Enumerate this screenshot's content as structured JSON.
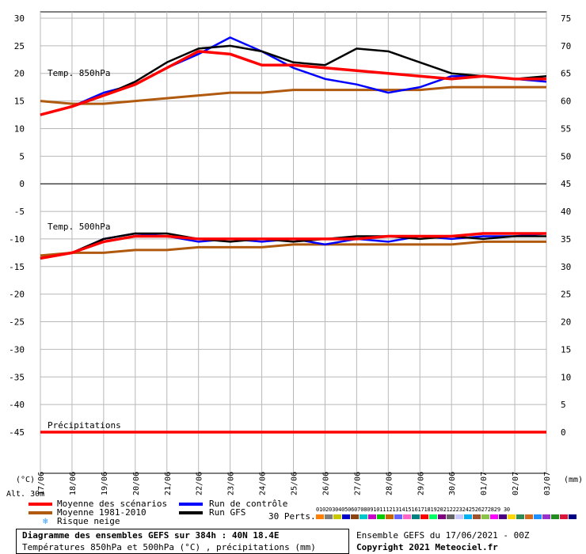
{
  "chart_data": {
    "type": "line",
    "title": "Diagramme des ensembles GEFS sur 384h : 40N 18.4E",
    "subtitle": "Températures 850hPa et 500hPa (°C) , précipitations (mm)",
    "left_axis_unit": "(°C)",
    "right_axis_unit": "(mm)",
    "altitude_label": "Alt. 30m",
    "left_ticks": [
      30,
      25,
      20,
      15,
      10,
      5,
      0,
      -5,
      -10,
      -15,
      -20,
      -25,
      -30,
      -35,
      -40,
      -45
    ],
    "right_ticks": [
      75,
      70,
      65,
      60,
      55,
      50,
      45,
      40,
      35,
      30,
      25,
      20,
      15,
      10,
      5,
      0
    ],
    "ylim": [
      -50,
      30
    ],
    "x_labels": [
      "17/06",
      "18/06",
      "19/06",
      "20/06",
      "21/06",
      "22/06",
      "23/06",
      "24/06",
      "25/06",
      "26/06",
      "27/06",
      "28/06",
      "29/06",
      "30/06",
      "01/07",
      "02/07",
      "03/07"
    ],
    "panel_labels": {
      "t850": "Temp. 850hPa",
      "t500": "Temp. 500hPa",
      "precip": "Précipitations"
    },
    "series": [
      {
        "name": "Moyenne des scénarios",
        "panel": "t850",
        "color": "#ff0000",
        "values": [
          12.5,
          14.0,
          16.0,
          18.0,
          21.0,
          24.0,
          23.5,
          21.5,
          21.5,
          21.0,
          20.5,
          20.0,
          19.5,
          19.0,
          19.5,
          19.0,
          19.0
        ]
      },
      {
        "name": "Moyenne 1981-2010",
        "panel": "t850",
        "color": "#b05a10",
        "values": [
          15.0,
          14.5,
          14.5,
          15.0,
          15.5,
          16.0,
          16.5,
          16.5,
          17.0,
          17.0,
          17.0,
          17.0,
          17.0,
          17.5,
          17.5,
          17.5,
          17.5
        ]
      },
      {
        "name": "Run de contrôle",
        "panel": "t850",
        "color": "#0000ff",
        "values": [
          12.5,
          14.0,
          16.5,
          18.0,
          21.0,
          23.5,
          26.5,
          24.0,
          21.0,
          19.0,
          18.0,
          16.5,
          17.5,
          19.5,
          19.5,
          19.0,
          18.5
        ]
      },
      {
        "name": "Run GFS",
        "panel": "t850",
        "color": "#000000",
        "values": [
          12.5,
          14.0,
          16.0,
          18.5,
          22.0,
          24.5,
          25.0,
          24.0,
          22.0,
          21.5,
          24.5,
          24.0,
          22.0,
          20.0,
          19.5,
          19.0,
          19.5
        ]
      },
      {
        "name": "Moyenne des scénarios",
        "panel": "t500",
        "color": "#ff0000",
        "values": [
          -13.5,
          -12.5,
          -10.5,
          -9.5,
          -9.5,
          -10.0,
          -10.0,
          -10.0,
          -10.0,
          -10.0,
          -10.0,
          -9.5,
          -9.5,
          -9.5,
          -9.0,
          -9.0,
          -9.0
        ]
      },
      {
        "name": "Moyenne 1981-2010",
        "panel": "t500",
        "color": "#b05a10",
        "values": [
          -13.0,
          -12.5,
          -12.5,
          -12.0,
          -12.0,
          -11.5,
          -11.5,
          -11.5,
          -11.0,
          -11.0,
          -11.0,
          -11.0,
          -11.0,
          -11.0,
          -10.5,
          -10.5,
          -10.5
        ]
      },
      {
        "name": "Run de contrôle",
        "panel": "t500",
        "color": "#0000ff",
        "values": [
          -13.5,
          -12.5,
          -10.0,
          -9.0,
          -9.5,
          -10.5,
          -10.0,
          -10.5,
          -10.0,
          -11.0,
          -10.0,
          -10.5,
          -9.5,
          -10.0,
          -9.5,
          -9.5,
          -9.0
        ]
      },
      {
        "name": "Run GFS",
        "panel": "t500",
        "color": "#000000",
        "values": [
          -13.5,
          -12.5,
          -10.0,
          -9.0,
          -9.0,
          -10.0,
          -10.5,
          -10.0,
          -10.5,
          -10.0,
          -9.5,
          -9.5,
          -10.0,
          -9.5,
          -10.0,
          -9.5,
          -9.5
        ]
      },
      {
        "name": "Moyenne des scénarios",
        "panel": "precip",
        "color": "#ff0000",
        "values": [
          0,
          0,
          0,
          0,
          0,
          0,
          0,
          0,
          0,
          0,
          0,
          0,
          0,
          0,
          0,
          0,
          0
        ]
      }
    ],
    "grid": true
  },
  "legend": {
    "items": [
      {
        "label": "Moyenne des scénarios",
        "color": "#ff0000"
      },
      {
        "label": "Run de contrôle",
        "color": "#0000ff"
      },
      {
        "label": "Moyenne 1981-2010",
        "color": "#b05a10"
      },
      {
        "label": "Run GFS",
        "color": "#000000"
      }
    ],
    "snow_label": "Risque neige",
    "perts_label": "30 Perts.",
    "perts_numbers": "0102030405060708091011121314151617181920212223242526272829 30",
    "perts_colors": [
      "#ff7f00",
      "#7f7f7f",
      "#c8c800",
      "#0000c8",
      "#8b4513",
      "#00c8c8",
      "#c800c8",
      "#00c800",
      "#c86400",
      "#6464ff",
      "#ff64c8",
      "#008080",
      "#ff0000",
      "#00ff64",
      "#7f007f",
      "#646464",
      "#c8c8ff",
      "#00b0f0",
      "#a0522d",
      "#8bc34a",
      "#ff00ff",
      "#4b0082",
      "#ffd700",
      "#2e8b57",
      "#d2691e",
      "#1e90ff",
      "#9932cc",
      "#228b22",
      "#dc143c",
      "#000080"
    ]
  },
  "info_box": {
    "title": "Diagramme des ensembles GEFS sur 384h : 40N 18.4E",
    "subtitle": "Températures 850hPa et 500hPa (°C) , précipitations (mm)"
  },
  "footer": {
    "run_info": "Ensemble GEFS du 17/06/2021 - 00Z",
    "copyright": "Copyright 2021 Meteociel.fr"
  }
}
